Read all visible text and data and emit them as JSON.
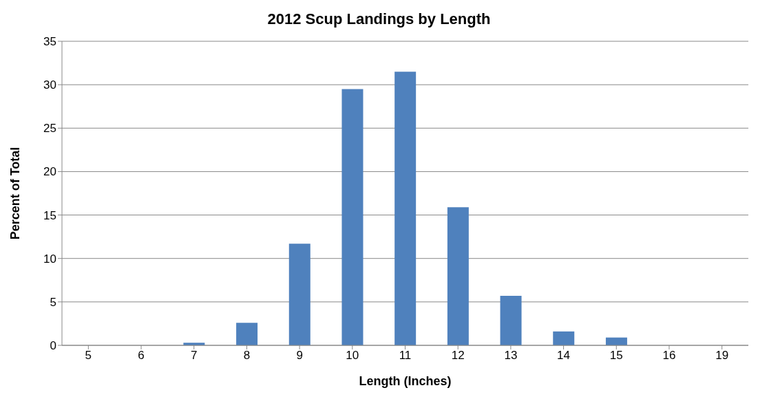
{
  "chart_data": {
    "type": "bar",
    "title": "2012 Scup Landings by Length",
    "xlabel": "Length (Inches)",
    "ylabel": "Percent of Total",
    "categories": [
      "5",
      "6",
      "7",
      "8",
      "9",
      "10",
      "11",
      "12",
      "13",
      "14",
      "15",
      "16",
      "19"
    ],
    "values": [
      0,
      0,
      0.3,
      2.6,
      11.7,
      29.5,
      31.5,
      15.9,
      5.7,
      1.6,
      0.9,
      0,
      0
    ],
    "color": "#4f81bd",
    "ylim": [
      0,
      35
    ],
    "yticks": [
      0,
      5,
      10,
      15,
      20,
      25,
      30,
      35
    ],
    "grid": "y",
    "legend": false
  }
}
